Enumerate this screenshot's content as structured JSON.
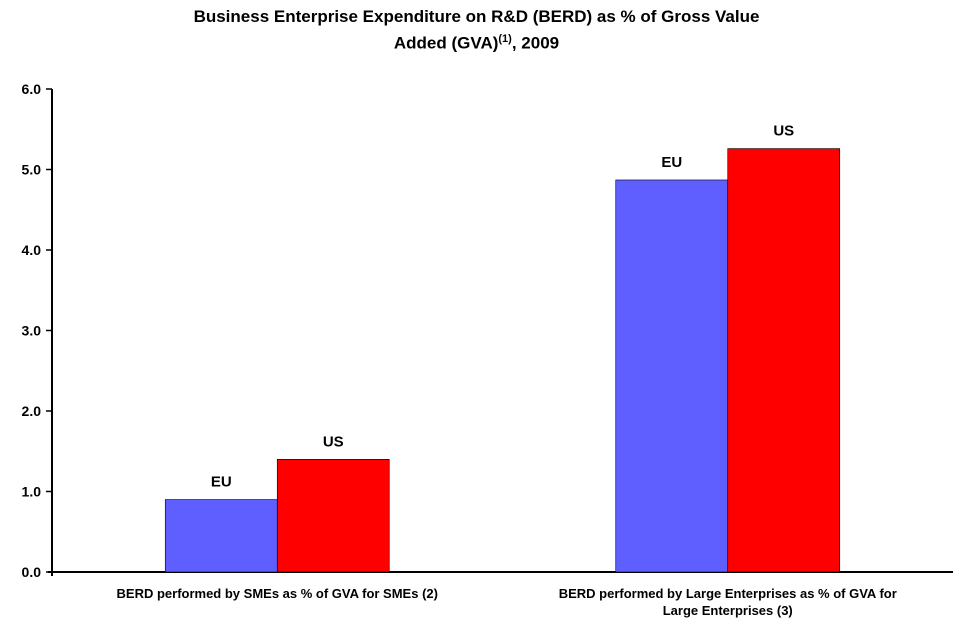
{
  "chart_data": {
    "type": "bar",
    "title_line1": "Business Enterprise Expenditure on R&D (BERD)  as % of Gross Value",
    "title_line2_main": "Added (GVA)",
    "title_line2_sup": "(1)",
    "title_line2_end": ", 2009",
    "categories": [
      [
        "BERD performed by SMEs as % of GVA for SMEs (2)"
      ],
      [
        "BERD performed by Large Enterprises as % of GVA for",
        "Large Enterprises (3)"
      ]
    ],
    "series": [
      {
        "name": "EU",
        "color": "#5f5fff",
        "values": [
          0.9,
          4.87
        ]
      },
      {
        "name": "US",
        "color": "#ff0000",
        "values": [
          1.4,
          5.26
        ]
      }
    ],
    "ylim": [
      0,
      6
    ],
    "yticks": [
      "0.0",
      "1.0",
      "2.0",
      "3.0",
      "4.0",
      "5.0",
      "6.0"
    ],
    "grid": false
  }
}
